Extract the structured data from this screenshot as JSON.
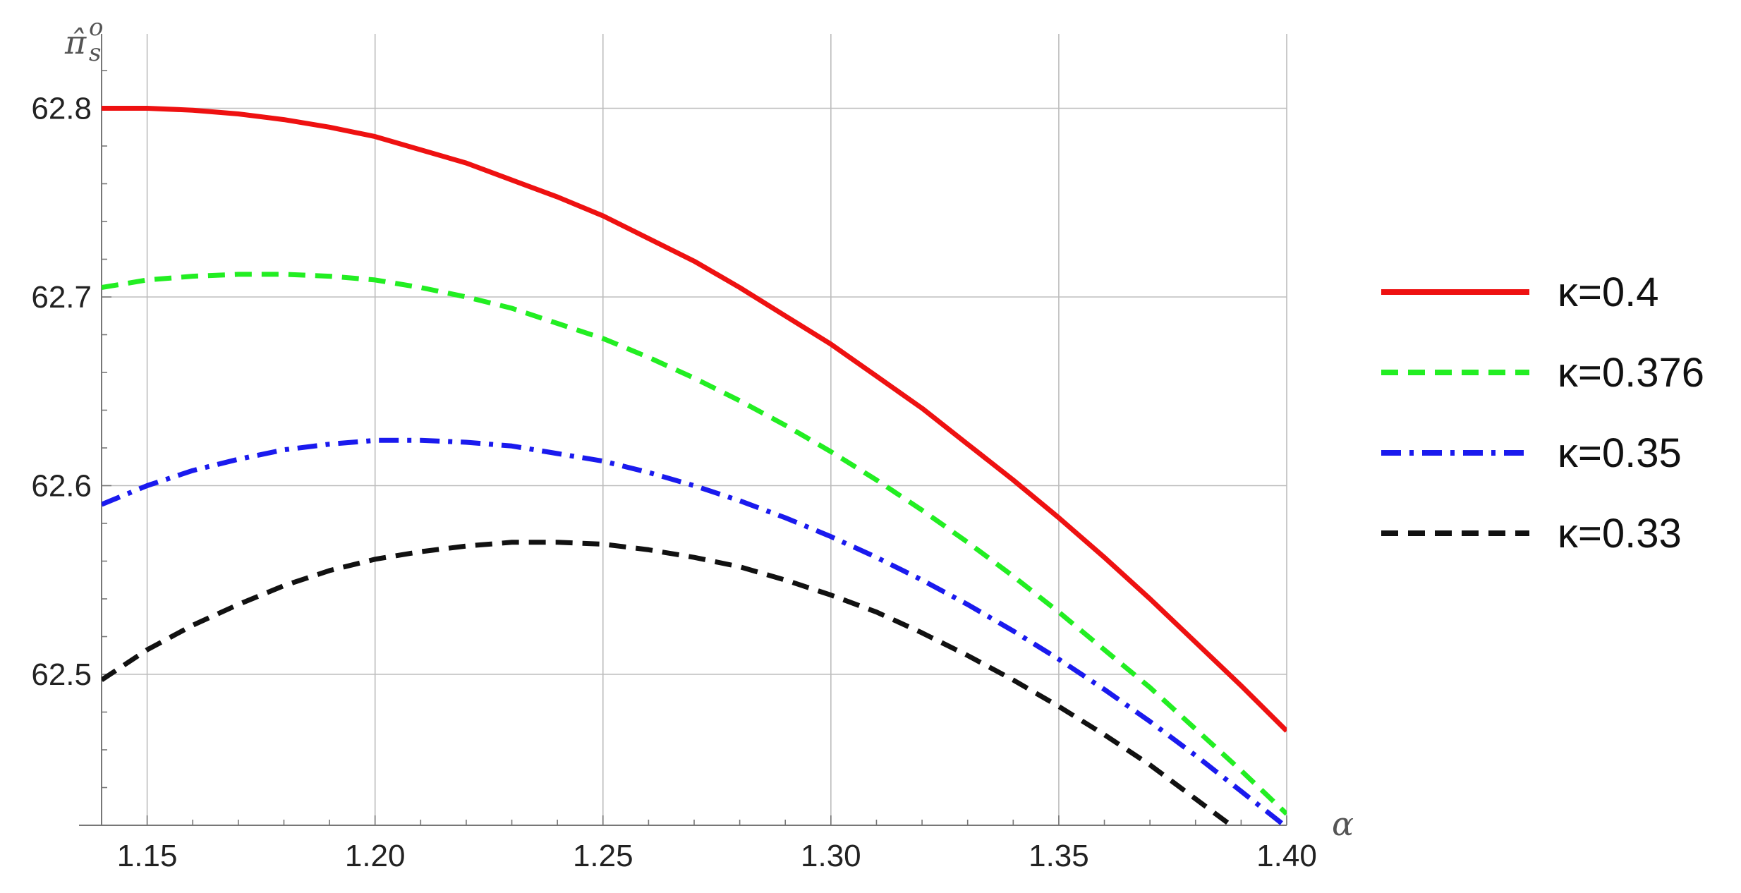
{
  "chart_data": {
    "type": "line",
    "title": "",
    "xlabel": "α",
    "ylabel": "π̂",
    "ylabel_superscript": "o",
    "ylabel_subscript": "s",
    "xlim": [
      1.14,
      1.4
    ],
    "ylim": [
      62.42,
      62.82
    ],
    "xticks": [
      1.15,
      1.2,
      1.25,
      1.3,
      1.35,
      1.4
    ],
    "xtick_labels": [
      "1.15",
      "1.20",
      "1.25",
      "1.30",
      "1.35",
      "1.40"
    ],
    "yticks": [
      62.5,
      62.6,
      62.7,
      62.8
    ],
    "ytick_labels": [
      "62.5",
      "62.6",
      "62.7",
      "62.8"
    ],
    "grid": true,
    "legend_position": "right",
    "series": [
      {
        "name": "κ=0.4",
        "color": "#ee1111",
        "style": "solid",
        "x": [
          1.14,
          1.15,
          1.16,
          1.17,
          1.18,
          1.19,
          1.2,
          1.21,
          1.22,
          1.23,
          1.24,
          1.25,
          1.26,
          1.27,
          1.28,
          1.29,
          1.3,
          1.31,
          1.32,
          1.33,
          1.34,
          1.35,
          1.36,
          1.37,
          1.38,
          1.39,
          1.4
        ],
        "y": [
          62.8,
          62.8,
          62.799,
          62.797,
          62.794,
          62.79,
          62.785,
          62.778,
          62.771,
          62.762,
          62.753,
          62.743,
          62.731,
          62.719,
          62.705,
          62.69,
          62.675,
          62.658,
          62.641,
          62.622,
          62.603,
          62.583,
          62.562,
          62.54,
          62.517,
          62.494,
          62.47
        ]
      },
      {
        "name": "κ=0.376",
        "color": "#22ee22",
        "style": "dashed",
        "x": [
          1.14,
          1.15,
          1.16,
          1.17,
          1.18,
          1.19,
          1.2,
          1.21,
          1.22,
          1.23,
          1.24,
          1.25,
          1.26,
          1.27,
          1.28,
          1.29,
          1.3,
          1.31,
          1.32,
          1.33,
          1.34,
          1.35,
          1.36,
          1.37,
          1.38,
          1.39,
          1.4
        ],
        "y": [
          62.705,
          62.709,
          62.711,
          62.712,
          62.712,
          62.711,
          62.709,
          62.705,
          62.7,
          62.694,
          62.686,
          62.678,
          62.668,
          62.657,
          62.645,
          62.632,
          62.618,
          62.603,
          62.587,
          62.57,
          62.552,
          62.533,
          62.513,
          62.493,
          62.471,
          62.449,
          62.426
        ]
      },
      {
        "name": "κ=0.35",
        "color": "#1a1aee",
        "style": "dashdot",
        "x": [
          1.14,
          1.15,
          1.16,
          1.17,
          1.18,
          1.19,
          1.2,
          1.21,
          1.22,
          1.23,
          1.24,
          1.25,
          1.26,
          1.27,
          1.28,
          1.29,
          1.3,
          1.31,
          1.32,
          1.33,
          1.34,
          1.35,
          1.36,
          1.37,
          1.38,
          1.39,
          1.4
        ],
        "y": [
          62.59,
          62.6,
          62.608,
          62.614,
          62.619,
          62.622,
          62.624,
          62.624,
          62.623,
          62.621,
          62.617,
          62.613,
          62.607,
          62.6,
          62.592,
          62.583,
          62.573,
          62.562,
          62.55,
          62.537,
          62.523,
          62.508,
          62.492,
          62.475,
          62.457,
          62.438,
          62.419
        ]
      },
      {
        "name": "κ=0.33",
        "color": "#111111",
        "style": "dashed",
        "x": [
          1.14,
          1.15,
          1.16,
          1.17,
          1.18,
          1.19,
          1.2,
          1.21,
          1.22,
          1.23,
          1.24,
          1.25,
          1.26,
          1.27,
          1.28,
          1.29,
          1.3,
          1.31,
          1.32,
          1.33,
          1.34,
          1.35,
          1.36,
          1.37,
          1.38,
          1.39,
          1.4
        ],
        "y": [
          62.497,
          62.513,
          62.526,
          62.537,
          62.547,
          62.555,
          62.561,
          62.565,
          62.568,
          62.57,
          62.57,
          62.569,
          62.566,
          62.562,
          62.557,
          62.55,
          62.542,
          62.533,
          62.522,
          62.51,
          62.497,
          62.483,
          62.468,
          62.452,
          62.434,
          62.416,
          62.397
        ]
      }
    ]
  }
}
